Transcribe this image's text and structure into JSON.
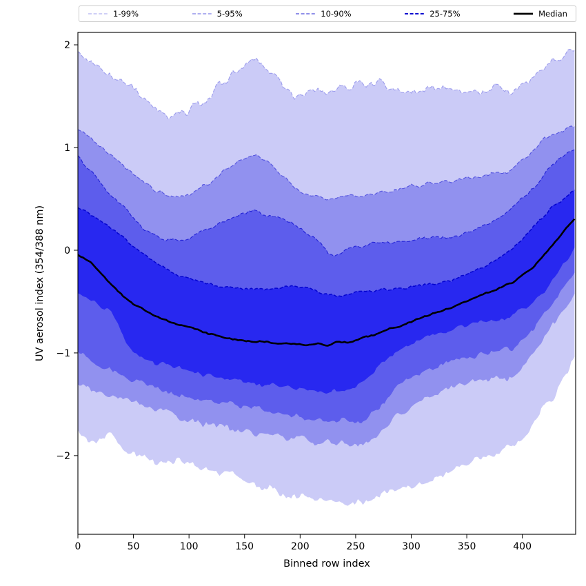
{
  "chart_data": {
    "type": "area",
    "subtype": "percentile-fan",
    "title": "",
    "xlabel": "Binned row index",
    "ylabel": "UV aerosol index (354/388 nm)",
    "xlim": [
      0,
      448
    ],
    "ylim": [
      -2.766,
      2.121
    ],
    "x_ticks": [
      0,
      50,
      100,
      150,
      200,
      250,
      300,
      350,
      400
    ],
    "y_ticks": [
      2,
      1,
      0,
      -1,
      -2
    ],
    "grid": false,
    "legend_position": "top",
    "line_color": "#0000CD",
    "median_line": {
      "label": "Median",
      "series": "median",
      "color": "#000000",
      "width": 2.6
    },
    "bands": [
      {
        "label": "1-99%",
        "upper": "p99",
        "lower": "p1",
        "fill": "#cbcbf7",
        "line_opacity": 0.3,
        "line_width": 1.1
      },
      {
        "label": "5-95%",
        "upper": "p95",
        "lower": "p5",
        "fill": "#9191ef",
        "line_opacity": 0.5,
        "line_width": 1.1
      },
      {
        "label": "10-90%",
        "upper": "p90",
        "lower": "p10",
        "fill": "#5d5dec",
        "line_opacity": 0.7,
        "line_width": 1.1
      },
      {
        "label": "25-75%",
        "upper": "p75",
        "lower": "p25",
        "fill": "#2828f0",
        "line_opacity": 0.95,
        "line_width": 1.5
      }
    ],
    "series": {
      "p99": {
        "noise": 0.035,
        "x": [
          0,
          10,
          20,
          30,
          40,
          50,
          60,
          70,
          80,
          90,
          100,
          110,
          120,
          130,
          140,
          150,
          158,
          165,
          175,
          185,
          195,
          210,
          225,
          240,
          255,
          270,
          285,
          300,
          315,
          330,
          345,
          360,
          375,
          390,
          400,
          410,
          420,
          430,
          440,
          448
        ],
        "y": [
          1.93,
          1.85,
          1.76,
          1.68,
          1.62,
          1.56,
          1.45,
          1.35,
          1.29,
          1.32,
          1.36,
          1.44,
          1.52,
          1.62,
          1.72,
          1.81,
          1.86,
          1.82,
          1.72,
          1.6,
          1.52,
          1.56,
          1.57,
          1.6,
          1.62,
          1.64,
          1.58,
          1.53,
          1.56,
          1.59,
          1.55,
          1.56,
          1.6,
          1.56,
          1.62,
          1.68,
          1.77,
          1.86,
          1.92,
          1.95
        ]
      },
      "p95": {
        "noise": 0.018,
        "x": [
          0,
          15,
          30,
          50,
          65,
          80,
          90,
          100,
          115,
          130,
          145,
          158,
          170,
          185,
          195,
          210,
          225,
          240,
          255,
          270,
          285,
          300,
          315,
          330,
          345,
          360,
          375,
          390,
          400,
          410,
          420,
          430,
          440,
          448
        ],
        "y": [
          1.2,
          1.05,
          0.92,
          0.73,
          0.62,
          0.53,
          0.51,
          0.55,
          0.64,
          0.75,
          0.86,
          0.93,
          0.87,
          0.72,
          0.61,
          0.53,
          0.49,
          0.52,
          0.54,
          0.56,
          0.58,
          0.62,
          0.65,
          0.68,
          0.7,
          0.72,
          0.74,
          0.78,
          0.88,
          0.98,
          1.08,
          1.14,
          1.18,
          1.22
        ]
      },
      "p90": {
        "noise": 0.015,
        "x": [
          0,
          15,
          30,
          45,
          60,
          75,
          90,
          100,
          115,
          130,
          145,
          158,
          170,
          185,
          195,
          205,
          215,
          225,
          232,
          240,
          250,
          265,
          280,
          295,
          310,
          325,
          340,
          355,
          370,
          385,
          395,
          405,
          415,
          425,
          435,
          448
        ],
        "y": [
          0.92,
          0.72,
          0.55,
          0.38,
          0.2,
          0.11,
          0.08,
          0.12,
          0.2,
          0.27,
          0.33,
          0.38,
          0.33,
          0.29,
          0.26,
          0.18,
          0.1,
          -0.02,
          -0.07,
          0.0,
          0.04,
          0.06,
          0.08,
          0.09,
          0.11,
          0.12,
          0.14,
          0.18,
          0.26,
          0.36,
          0.45,
          0.55,
          0.68,
          0.8,
          0.9,
          0.99
        ]
      },
      "p75": {
        "noise": 0.012,
        "x": [
          0,
          15,
          30,
          45,
          60,
          75,
          90,
          105,
          120,
          135,
          150,
          165,
          180,
          195,
          210,
          222,
          232,
          245,
          260,
          275,
          290,
          305,
          320,
          335,
          350,
          365,
          380,
          390,
          400,
          410,
          420,
          430,
          440,
          448
        ],
        "y": [
          0.42,
          0.33,
          0.22,
          0.08,
          -0.05,
          -0.16,
          -0.25,
          -0.3,
          -0.34,
          -0.36,
          -0.37,
          -0.37,
          -0.36,
          -0.35,
          -0.38,
          -0.43,
          -0.45,
          -0.42,
          -0.4,
          -0.38,
          -0.37,
          -0.36,
          -0.33,
          -0.3,
          -0.24,
          -0.16,
          -0.07,
          0.0,
          0.1,
          0.22,
          0.35,
          0.45,
          0.52,
          0.58
        ]
      },
      "median": {
        "noise": 0.008,
        "x": [
          0,
          10,
          20,
          30,
          40,
          50,
          60,
          70,
          80,
          90,
          100,
          115,
          130,
          145,
          160,
          175,
          190,
          205,
          215,
          225,
          232,
          240,
          250,
          260,
          270,
          280,
          290,
          305,
          320,
          335,
          350,
          365,
          378,
          390,
          400,
          410,
          420,
          430,
          440,
          448
        ],
        "y": [
          -0.05,
          -0.1,
          -0.22,
          -0.33,
          -0.43,
          -0.52,
          -0.59,
          -0.64,
          -0.68,
          -0.72,
          -0.75,
          -0.8,
          -0.84,
          -0.87,
          -0.89,
          -0.9,
          -0.91,
          -0.92,
          -0.91,
          -0.93,
          -0.9,
          -0.9,
          -0.87,
          -0.84,
          -0.81,
          -0.77,
          -0.74,
          -0.68,
          -0.62,
          -0.57,
          -0.5,
          -0.43,
          -0.37,
          -0.32,
          -0.25,
          -0.16,
          -0.05,
          0.08,
          0.22,
          0.32
        ]
      },
      "p25": {
        "noise": 0.022,
        "x": [
          0,
          15,
          30,
          40,
          50,
          60,
          75,
          90,
          105,
          120,
          135,
          150,
          165,
          180,
          195,
          210,
          225,
          240,
          250,
          265,
          280,
          295,
          305,
          320,
          335,
          350,
          365,
          380,
          390,
          400,
          410,
          420,
          430,
          440,
          448
        ],
        "y": [
          -0.44,
          -0.5,
          -0.6,
          -0.82,
          -1.02,
          -1.07,
          -1.1,
          -1.15,
          -1.2,
          -1.23,
          -1.25,
          -1.27,
          -1.3,
          -1.33,
          -1.35,
          -1.37,
          -1.38,
          -1.36,
          -1.34,
          -1.18,
          -1.03,
          -0.92,
          -0.88,
          -0.82,
          -0.78,
          -0.74,
          -0.7,
          -0.67,
          -0.64,
          -0.58,
          -0.5,
          -0.38,
          -0.25,
          -0.1,
          0.02
        ]
      },
      "p10": {
        "noise": 0.026,
        "x": [
          0,
          15,
          30,
          50,
          75,
          100,
          125,
          150,
          165,
          180,
          195,
          210,
          225,
          240,
          255,
          270,
          285,
          300,
          315,
          330,
          345,
          360,
          375,
          390,
          400,
          410,
          420,
          430,
          440,
          448
        ],
        "y": [
          -0.98,
          -1.1,
          -1.19,
          -1.27,
          -1.36,
          -1.43,
          -1.48,
          -1.52,
          -1.56,
          -1.59,
          -1.61,
          -1.63,
          -1.65,
          -1.66,
          -1.66,
          -1.55,
          -1.35,
          -1.25,
          -1.17,
          -1.1,
          -1.06,
          -1.02,
          -0.99,
          -0.96,
          -0.88,
          -0.76,
          -0.62,
          -0.48,
          -0.33,
          -0.2
        ]
      },
      "p5": {
        "noise": 0.03,
        "x": [
          0,
          15,
          30,
          50,
          75,
          100,
          125,
          150,
          165,
          180,
          195,
          210,
          225,
          240,
          255,
          270,
          285,
          300,
          315,
          330,
          345,
          360,
          375,
          390,
          400,
          410,
          420,
          430,
          440,
          448
        ],
        "y": [
          -1.3,
          -1.38,
          -1.43,
          -1.47,
          -1.56,
          -1.66,
          -1.71,
          -1.75,
          -1.78,
          -1.81,
          -1.83,
          -1.86,
          -1.88,
          -1.89,
          -1.9,
          -1.8,
          -1.65,
          -1.5,
          -1.42,
          -1.36,
          -1.32,
          -1.28,
          -1.26,
          -1.24,
          -1.12,
          -0.98,
          -0.83,
          -0.68,
          -0.54,
          -0.43
        ]
      },
      "p1": {
        "noise": 0.038,
        "x": [
          0,
          8,
          15,
          22,
          30,
          40,
          50,
          65,
          80,
          95,
          110,
          125,
          140,
          155,
          170,
          185,
          200,
          215,
          230,
          245,
          260,
          275,
          290,
          305,
          320,
          335,
          350,
          365,
          378,
          390,
          400,
          410,
          420,
          430,
          440,
          448
        ],
        "y": [
          -1.72,
          -1.85,
          -1.88,
          -1.8,
          -1.8,
          -1.92,
          -1.98,
          -2.02,
          -2.05,
          -2.06,
          -2.1,
          -2.15,
          -2.2,
          -2.26,
          -2.31,
          -2.36,
          -2.4,
          -2.43,
          -2.45,
          -2.46,
          -2.44,
          -2.4,
          -2.34,
          -2.28,
          -2.21,
          -2.15,
          -2.09,
          -2.02,
          -1.97,
          -1.93,
          -1.83,
          -1.7,
          -1.55,
          -1.38,
          -1.18,
          -1.0
        ]
      }
    }
  },
  "figure": {
    "legend_labels": [
      "1-99%",
      "5-95%",
      "10-90%",
      "25-75%",
      "Median"
    ],
    "x_axis_label": "Binned row index",
    "y_axis_label": "UV aerosol index (354/388 nm)"
  }
}
